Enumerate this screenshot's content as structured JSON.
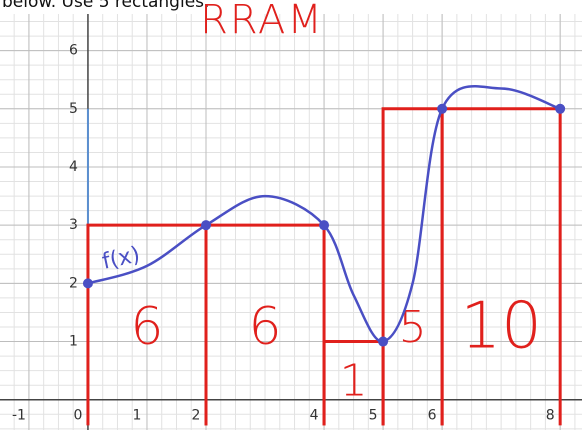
{
  "chart_data": {
    "type": "line",
    "header_text": "below. Use 5 rectangles.",
    "title": "RRAM",
    "function_label": "f(x)",
    "xlim": [
      -1.49,
      8.37
    ],
    "ylim": [
      -0.52,
      6.87
    ],
    "xticks": [
      -1,
      0,
      1,
      2,
      4,
      5,
      6,
      8
    ],
    "yticks": [
      1,
      2,
      3,
      4,
      5,
      6
    ],
    "grid": true,
    "minor_grid_divisions": 4,
    "curve": {
      "color": "#4a4fc4",
      "x": [
        0,
        1,
        2,
        3,
        4,
        4.5,
        5,
        5.5,
        6,
        7,
        8
      ],
      "values": [
        2,
        2.3,
        3,
        3.5,
        3,
        1.8,
        1,
        2,
        5,
        5.35,
        5
      ]
    },
    "points": {
      "color": "#4a4fc4",
      "x": [
        0,
        2,
        4,
        5,
        6,
        8
      ],
      "values": [
        2,
        3,
        3,
        1,
        5,
        5
      ]
    },
    "rect_color": "#e0201c",
    "rectangles": [
      {
        "x": [
          0,
          2
        ],
        "height": 3,
        "area": 6
      },
      {
        "x": [
          2,
          4
        ],
        "height": 3,
        "area": 6
      },
      {
        "x": [
          4,
          5
        ],
        "height": 1,
        "area": 1
      },
      {
        "x": [
          5,
          6
        ],
        "height": 5,
        "area": 5
      },
      {
        "x": [
          6,
          8
        ],
        "height": 5,
        "area": 10
      }
    ]
  }
}
